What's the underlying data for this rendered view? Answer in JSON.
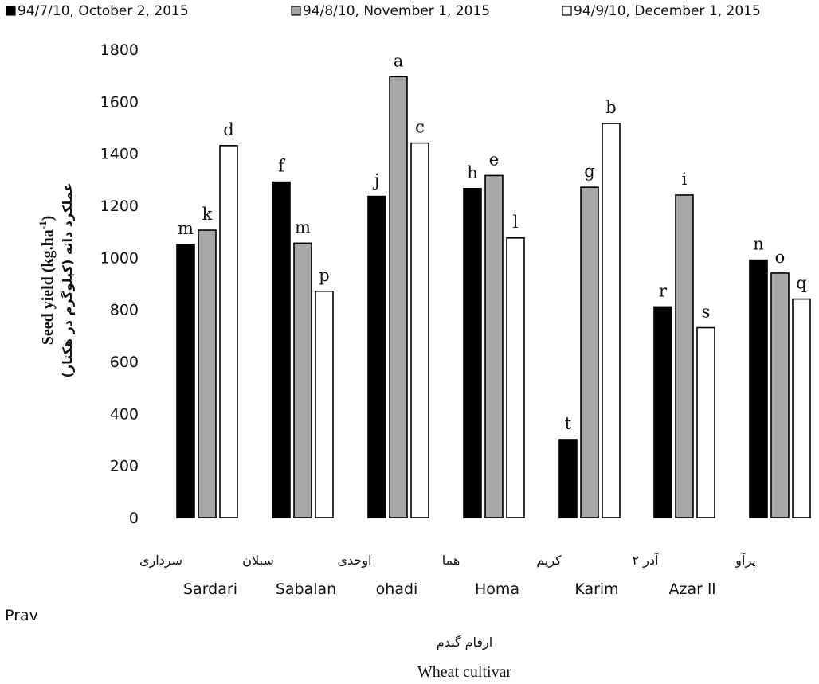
{
  "chart_data": {
    "type": "bar",
    "ylabel_en": "Seed yield (kg.ha",
    "ylabel_en_sup": "-1",
    "ylabel_en_close": ")",
    "ylabel_fa": "عملکرد دانه (کیلوگرم در هکتار)",
    "xlabel_fa": "ارقام گندم",
    "xlabel_en": "Wheat cultivar",
    "ylim": [
      0,
      1800
    ],
    "yticks": [
      0,
      200,
      400,
      600,
      800,
      1000,
      1200,
      1400,
      1600,
      1800
    ],
    "categories": [
      "Sardari",
      "Sabalan",
      "ohadi",
      "Homa",
      "Karim",
      "Azar ll",
      "Prav"
    ],
    "categories_fa": [
      "سرداری",
      "سبلان",
      "اوحدی",
      "هما",
      "کریم",
      "آذر ۲",
      "پرآو"
    ],
    "series": [
      {
        "name": "94/7/10, October 2, 2015",
        "color": "#000000",
        "values": [
          1050,
          1290,
          1235,
          1265,
          300,
          810,
          990
        ],
        "letters": [
          "m",
          "f",
          "j",
          "h",
          "t",
          "r",
          "n"
        ]
      },
      {
        "name": "94/8/10, November 1, 2015",
        "color": "#a6a6a6",
        "values": [
          1105,
          1055,
          1695,
          1315,
          1270,
          1240,
          940
        ],
        "letters": [
          "k",
          "m",
          "a",
          "e",
          "g",
          "i",
          "o"
        ]
      },
      {
        "name": "94/9/10, December 1, 2015",
        "color": "#ffffff",
        "values": [
          1430,
          870,
          1440,
          1075,
          1515,
          730,
          840
        ],
        "letters": [
          "d",
          "p",
          "c",
          "l",
          "b",
          "s",
          "q"
        ]
      }
    ],
    "legend_position": "top",
    "grid": false
  }
}
